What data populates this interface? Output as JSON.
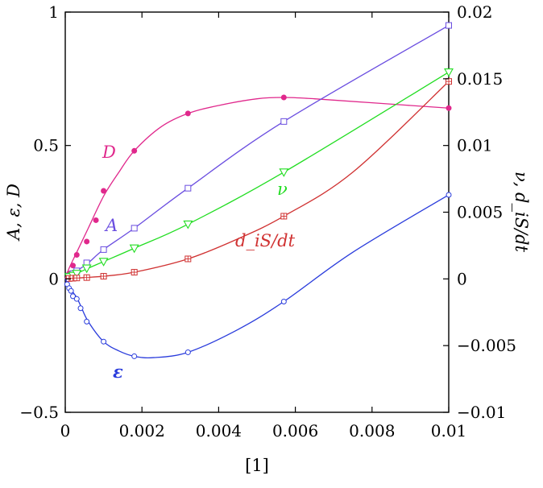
{
  "chart_data": {
    "type": "line",
    "xlabel": "[1]",
    "ylabel_left": "A, ε, D",
    "ylabel_right": "ν, d_iS/dt",
    "xlim": [
      0,
      0.01
    ],
    "ylim_left": [
      -0.5,
      1
    ],
    "ylim_right": [
      -0.01,
      0.02
    ],
    "x_ticks": [
      "0",
      "0.002",
      "0.004",
      "0.006",
      "0.008",
      "0.01"
    ],
    "y_left_ticks": [
      "−0.5",
      "0",
      "0.5",
      "1"
    ],
    "y_right_ticks": [
      "−0.01",
      "−0.005",
      "0",
      "0.005",
      "0.01",
      "0.015",
      "0.02"
    ],
    "grid": false,
    "legend": "none",
    "series": [
      {
        "name": "D",
        "axis": "left",
        "color": "#e0288c",
        "marker": "filled-circle",
        "label_text": "D",
        "curve": [
          [
            0,
            0
          ],
          [
            0.0001,
            0.04
          ],
          [
            0.0003,
            0.1
          ],
          [
            0.0006,
            0.19
          ],
          [
            0.001,
            0.31
          ],
          [
            0.0014,
            0.4
          ],
          [
            0.0018,
            0.48
          ],
          [
            0.0025,
            0.57
          ],
          [
            0.0032,
            0.62
          ],
          [
            0.004,
            0.65
          ],
          [
            0.005,
            0.675
          ],
          [
            0.0057,
            0.68
          ],
          [
            0.0065,
            0.675
          ],
          [
            0.008,
            0.66
          ],
          [
            0.01,
            0.64
          ]
        ],
        "markers": [
          [
            0.0001,
            0.02
          ],
          [
            0.0002,
            0.05
          ],
          [
            0.0003,
            0.09
          ],
          [
            0.00056,
            0.14
          ],
          [
            0.0008,
            0.22
          ],
          [
            0.001,
            0.33
          ],
          [
            0.0018,
            0.48
          ],
          [
            0.0032,
            0.62
          ],
          [
            0.0057,
            0.68
          ],
          [
            0.01,
            0.64
          ]
        ]
      },
      {
        "name": "A",
        "axis": "left",
        "color": "#6a4de0",
        "marker": "open-square",
        "label_text": "A",
        "curve": [
          [
            0,
            0
          ],
          [
            0.0003,
            0.03
          ],
          [
            0.0006,
            0.06
          ],
          [
            0.001,
            0.11
          ],
          [
            0.0018,
            0.19
          ],
          [
            0.0032,
            0.34
          ],
          [
            0.0057,
            0.59
          ],
          [
            0.01,
            0.95
          ]
        ],
        "markers": [
          [
            0.0001,
            0.01
          ],
          [
            0.0002,
            0.02
          ],
          [
            0.0003,
            0.03
          ],
          [
            0.00056,
            0.06
          ],
          [
            0.001,
            0.11
          ],
          [
            0.0018,
            0.19
          ],
          [
            0.0032,
            0.34
          ],
          [
            0.0057,
            0.59
          ],
          [
            0.01,
            0.95
          ]
        ]
      },
      {
        "name": "ν",
        "axis": "right",
        "color": "#22dd22",
        "marker": "open-triangle-down",
        "label_text": "ν",
        "curve": [
          [
            0,
            0
          ],
          [
            0.0003,
            0.0004
          ],
          [
            0.0006,
            0.0008
          ],
          [
            0.001,
            0.0013
          ],
          [
            0.0018,
            0.0023
          ],
          [
            0.0032,
            0.0041
          ],
          [
            0.0057,
            0.008
          ],
          [
            0.01,
            0.0155
          ]
        ],
        "markers": [
          [
            0.0001,
            0.00015
          ],
          [
            0.0002,
            0.00025
          ],
          [
            0.0003,
            0.0004
          ],
          [
            0.00056,
            0.0008
          ],
          [
            0.001,
            0.0013
          ],
          [
            0.0018,
            0.0023
          ],
          [
            0.0032,
            0.0041
          ],
          [
            0.0057,
            0.008
          ],
          [
            0.01,
            0.0155
          ]
        ]
      },
      {
        "name": "d_iS/dt",
        "axis": "right",
        "color": "#d03232",
        "marker": "open-square-plus",
        "label_text": "d_iS/dt",
        "curve": [
          [
            0,
            0
          ],
          [
            0.0005,
            0.0001
          ],
          [
            0.001,
            0.0002
          ],
          [
            0.0018,
            0.0005
          ],
          [
            0.0032,
            0.0015
          ],
          [
            0.0045,
            0.003
          ],
          [
            0.0057,
            0.0047
          ],
          [
            0.0075,
            0.008
          ],
          [
            0.01,
            0.0148
          ]
        ],
        "markers": [
          [
            0.0001,
            3e-05
          ],
          [
            0.0002,
            5e-05
          ],
          [
            0.0003,
            7e-05
          ],
          [
            0.00056,
            0.0001
          ],
          [
            0.001,
            0.0002
          ],
          [
            0.0018,
            0.0005
          ],
          [
            0.0032,
            0.0015
          ],
          [
            0.0057,
            0.0047
          ],
          [
            0.01,
            0.0148
          ]
        ]
      },
      {
        "name": "ε",
        "axis": "left",
        "color": "#2a3cdc",
        "marker": "open-circle",
        "label_text": "ε",
        "curve": [
          [
            0,
            0
          ],
          [
            0.0001,
            -0.03
          ],
          [
            0.0002,
            -0.05
          ],
          [
            0.0003,
            -0.07
          ],
          [
            0.0004,
            -0.1
          ],
          [
            0.0006,
            -0.16
          ],
          [
            0.001,
            -0.235
          ],
          [
            0.0014,
            -0.27
          ],
          [
            0.0018,
            -0.29
          ],
          [
            0.0023,
            -0.295
          ],
          [
            0.0032,
            -0.275
          ],
          [
            0.0045,
            -0.19
          ],
          [
            0.0057,
            -0.085
          ],
          [
            0.0075,
            0.1
          ],
          [
            0.01,
            0.315
          ]
        ],
        "markers": [
          [
            5e-05,
            -0.02
          ],
          [
            0.0001,
            -0.035
          ],
          [
            0.00015,
            -0.045
          ],
          [
            0.0002,
            -0.065
          ],
          [
            0.0003,
            -0.075
          ],
          [
            0.0004,
            -0.11
          ],
          [
            0.00056,
            -0.16
          ],
          [
            0.001,
            -0.235
          ],
          [
            0.0018,
            -0.29
          ],
          [
            0.0032,
            -0.275
          ],
          [
            0.0057,
            -0.085
          ],
          [
            0.01,
            0.315
          ]
        ]
      }
    ]
  },
  "colors": {
    "axis": "#000000",
    "D": "#e0288c",
    "A": "#6a4de0",
    "nu": "#22dd22",
    "diS": "#d03232",
    "eps": "#2a3cdc"
  }
}
